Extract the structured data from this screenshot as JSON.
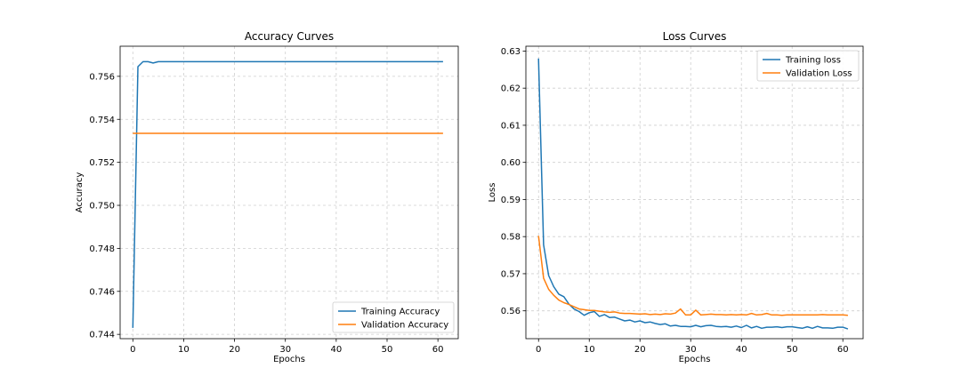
{
  "chart_data": [
    {
      "type": "line",
      "title": "Accuracy Curves",
      "xlabel": "Epochs",
      "ylabel": "Accuracy",
      "xlim": [
        -2.5,
        64
      ],
      "ylim": [
        0.7438,
        0.7574
      ],
      "xticks": [
        0,
        10,
        20,
        30,
        40,
        50,
        60
      ],
      "yticks": [
        0.744,
        0.746,
        0.748,
        0.75,
        0.752,
        0.754,
        0.756
      ],
      "ytick_decimals": 3,
      "grid": true,
      "legend_position": "lower-right",
      "x": [
        0,
        1,
        2,
        3,
        4,
        5,
        6,
        7,
        8,
        9,
        10,
        11,
        12,
        13,
        14,
        15,
        16,
        17,
        18,
        19,
        20,
        21,
        22,
        23,
        24,
        25,
        26,
        27,
        28,
        29,
        30,
        31,
        32,
        33,
        34,
        35,
        36,
        37,
        38,
        39,
        40,
        41,
        42,
        43,
        44,
        45,
        46,
        47,
        48,
        49,
        50,
        51,
        52,
        53,
        54,
        55,
        56,
        57,
        58,
        59,
        60,
        61
      ],
      "series": [
        {
          "name": "Training Accuracy",
          "color": "#1f77b4",
          "values": [
            0.7443,
            0.75645,
            0.75668,
            0.75668,
            0.75662,
            0.75668,
            0.75668,
            0.75668,
            0.75668,
            0.75668,
            0.75668,
            0.75668,
            0.75668,
            0.75668,
            0.75668,
            0.75668,
            0.75668,
            0.75668,
            0.75668,
            0.75668,
            0.75668,
            0.75668,
            0.75668,
            0.75668,
            0.75668,
            0.75668,
            0.75668,
            0.75668,
            0.75668,
            0.75668,
            0.75668,
            0.75668,
            0.75668,
            0.75668,
            0.75668,
            0.75668,
            0.75668,
            0.75668,
            0.75668,
            0.75668,
            0.75668,
            0.75668,
            0.75668,
            0.75668,
            0.75668,
            0.75668,
            0.75668,
            0.75668,
            0.75668,
            0.75668,
            0.75668,
            0.75668,
            0.75668,
            0.75668,
            0.75668,
            0.75668,
            0.75668,
            0.75668,
            0.75668,
            0.75668,
            0.75668,
            0.75668
          ]
        },
        {
          "name": "Validation Accuracy",
          "color": "#ff7f0e",
          "values": [
            0.75335,
            0.75335,
            0.75335,
            0.75335,
            0.75335,
            0.75335,
            0.75335,
            0.75335,
            0.75335,
            0.75335,
            0.75335,
            0.75335,
            0.75335,
            0.75335,
            0.75335,
            0.75335,
            0.75335,
            0.75335,
            0.75335,
            0.75335,
            0.75335,
            0.75335,
            0.75335,
            0.75335,
            0.75335,
            0.75335,
            0.75335,
            0.75335,
            0.75335,
            0.75335,
            0.75335,
            0.75335,
            0.75335,
            0.75335,
            0.75335,
            0.75335,
            0.75335,
            0.75335,
            0.75335,
            0.75335,
            0.75335,
            0.75335,
            0.75335,
            0.75335,
            0.75335,
            0.75335,
            0.75335,
            0.75335,
            0.75335,
            0.75335,
            0.75335,
            0.75335,
            0.75335,
            0.75335,
            0.75335,
            0.75335,
            0.75335,
            0.75335,
            0.75335,
            0.75335,
            0.75335,
            0.75335
          ]
        }
      ]
    },
    {
      "type": "line",
      "title": "Loss Curves",
      "xlabel": "Epochs",
      "ylabel": "Loss",
      "xlim": [
        -2.5,
        64
      ],
      "ylim": [
        0.5525,
        0.6313
      ],
      "xticks": [
        0,
        10,
        20,
        30,
        40,
        50,
        60
      ],
      "yticks": [
        0.56,
        0.57,
        0.58,
        0.59,
        0.6,
        0.61,
        0.62,
        0.63
      ],
      "ytick_decimals": 2,
      "grid": true,
      "legend_position": "upper-right",
      "x": [
        0,
        1,
        2,
        3,
        4,
        5,
        6,
        7,
        8,
        9,
        10,
        11,
        12,
        13,
        14,
        15,
        16,
        17,
        18,
        19,
        20,
        21,
        22,
        23,
        24,
        25,
        26,
        27,
        28,
        29,
        30,
        31,
        32,
        33,
        34,
        35,
        36,
        37,
        38,
        39,
        40,
        41,
        42,
        43,
        44,
        45,
        46,
        47,
        48,
        49,
        50,
        51,
        52,
        53,
        54,
        55,
        56,
        57,
        58,
        59,
        60,
        61
      ],
      "series": [
        {
          "name": "Training loss",
          "color": "#1f77b4",
          "values": [
            0.628,
            0.5778,
            0.5695,
            0.5665,
            0.5645,
            0.5638,
            0.5618,
            0.5605,
            0.5598,
            0.5588,
            0.5595,
            0.5598,
            0.5585,
            0.559,
            0.5582,
            0.5583,
            0.5578,
            0.5573,
            0.5575,
            0.557,
            0.5573,
            0.5568,
            0.557,
            0.5566,
            0.5563,
            0.5565,
            0.5559,
            0.5561,
            0.5558,
            0.5558,
            0.5557,
            0.5561,
            0.5557,
            0.556,
            0.5561,
            0.5558,
            0.5557,
            0.5558,
            0.5556,
            0.5559,
            0.5555,
            0.5561,
            0.5554,
            0.5558,
            0.5553,
            0.5556,
            0.5556,
            0.5557,
            0.5555,
            0.5557,
            0.5557,
            0.5555,
            0.5553,
            0.5557,
            0.5553,
            0.5558,
            0.5554,
            0.5554,
            0.5553,
            0.5556,
            0.5556,
            0.5551
          ]
        },
        {
          "name": "Validation Loss",
          "color": "#ff7f0e",
          "values": [
            0.5802,
            0.5688,
            0.5658,
            0.5642,
            0.5629,
            0.5622,
            0.5617,
            0.5611,
            0.5605,
            0.5603,
            0.5601,
            0.5601,
            0.5599,
            0.5597,
            0.5596,
            0.5597,
            0.5594,
            0.5593,
            0.5593,
            0.5592,
            0.5591,
            0.5592,
            0.559,
            0.5591,
            0.559,
            0.5592,
            0.5591,
            0.5594,
            0.5605,
            0.5589,
            0.5589,
            0.5602,
            0.5589,
            0.559,
            0.5591,
            0.559,
            0.559,
            0.5589,
            0.559,
            0.5589,
            0.559,
            0.5589,
            0.5593,
            0.5589,
            0.559,
            0.5593,
            0.5589,
            0.5589,
            0.5588,
            0.5589,
            0.5589,
            0.5589,
            0.5589,
            0.5589,
            0.5589,
            0.5589,
            0.559,
            0.5589,
            0.5589,
            0.5589,
            0.5589,
            0.5588
          ]
        }
      ]
    }
  ]
}
